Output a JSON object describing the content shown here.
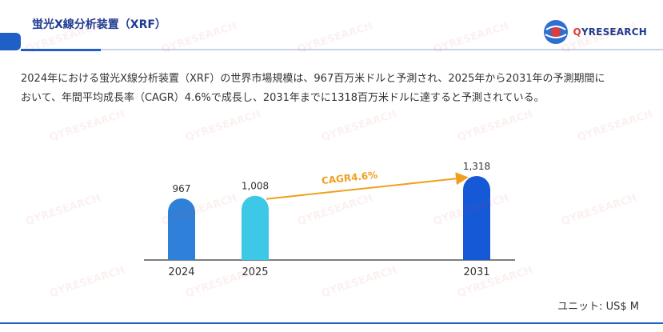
{
  "header": {
    "title": "蛍光X線分析装置（XRF）",
    "logo": {
      "prefix": "Q",
      "brand": "YRESEARCH",
      "icon": "globe-logo-icon"
    }
  },
  "summary": {
    "line1": "2024年における蛍光X線分析装置（XRF）の世界市場規模は、967百万米ドルと予測され、2025年から2031年の予測期間に",
    "line2": "おいて、年間平均成長率（CAGR）4.6%で成長し、2031年までに1318百万米ドルに達すると予測されている。"
  },
  "unit_label": "ユニット: US$ M",
  "watermark_text": "QYRESEARCH",
  "colors": {
    "accent": "#1f5fc6",
    "title": "#1f3b8f",
    "cagr": "#f0a020"
  },
  "chart_data": {
    "type": "bar",
    "categories": [
      "2024",
      "2025",
      "2031"
    ],
    "values": [
      967,
      1008,
      1318
    ],
    "value_labels": [
      "967",
      "1,008",
      "1,318"
    ],
    "bar_colors": [
      "#2f80d8",
      "#3cc8e6",
      "#1659d6"
    ],
    "cagr_label": "CAGR4.6%",
    "ylim": [
      0,
      1318
    ],
    "grid": false,
    "legend": "none"
  }
}
